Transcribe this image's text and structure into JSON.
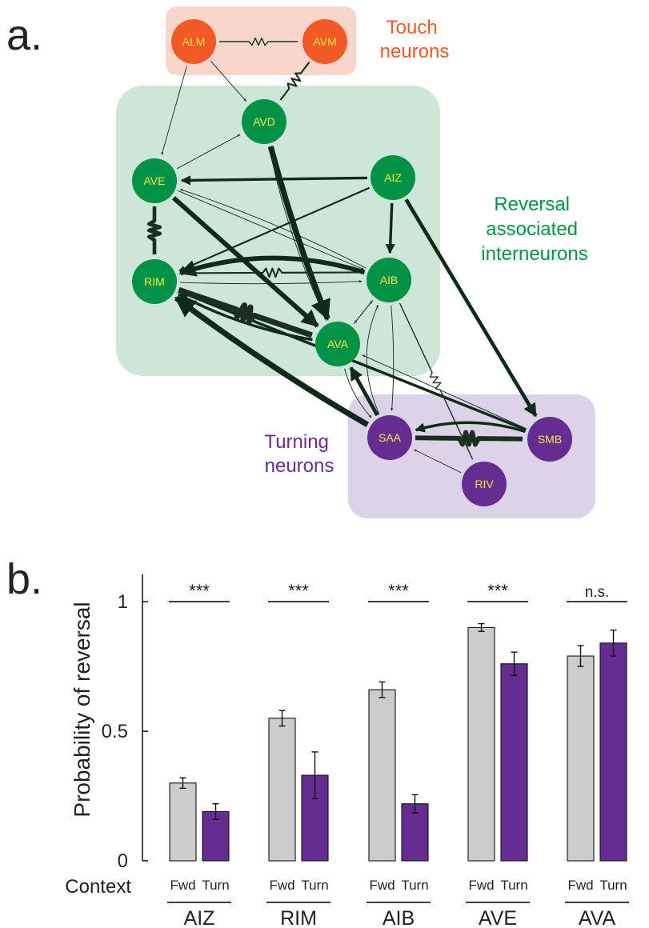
{
  "panel_a": {
    "label": "a.",
    "groups": {
      "touch": {
        "label_lines": [
          "Touch",
          "neurons"
        ],
        "color": "#f15a24",
        "box_color": "#f8d6cc"
      },
      "reversal": {
        "label_lines": [
          "Reversal",
          "associated",
          "interneurons"
        ],
        "color": "#009245",
        "box_color": "#cde6d8"
      },
      "turning": {
        "label_lines": [
          "Turning",
          "neurons"
        ],
        "color": "#662d91",
        "box_color": "#ddd3e8"
      }
    },
    "neuron_text_color": "#f5e642",
    "neurons": [
      {
        "id": "ALM",
        "label": "ALM",
        "group": "touch"
      },
      {
        "id": "AVM",
        "label": "AVM",
        "group": "touch"
      },
      {
        "id": "AVD",
        "label": "AVD",
        "group": "reversal"
      },
      {
        "id": "AVE",
        "label": "AVE",
        "group": "reversal"
      },
      {
        "id": "AIZ",
        "label": "AIZ",
        "group": "reversal"
      },
      {
        "id": "RIM",
        "label": "RIM",
        "group": "reversal"
      },
      {
        "id": "AIB",
        "label": "AIB",
        "group": "reversal"
      },
      {
        "id": "AVA",
        "label": "AVA",
        "group": "reversal"
      },
      {
        "id": "SAA",
        "label": "SAA",
        "group": "turning"
      },
      {
        "id": "SMB",
        "label": "SMB",
        "group": "turning"
      },
      {
        "id": "RIV",
        "label": "RIV",
        "group": "turning"
      }
    ],
    "connections": [
      {
        "from": "ALM",
        "to": "AVE",
        "kind": "chemical",
        "strength": 1
      },
      {
        "from": "ALM",
        "to": "AVD",
        "kind": "chemical",
        "strength": 1
      },
      {
        "from": "AVE",
        "to": "AVD",
        "kind": "chemical",
        "strength": 1
      },
      {
        "from": "AIZ",
        "to": "AVE",
        "kind": "chemical",
        "strength": 3
      },
      {
        "from": "AIZ",
        "to": "AIB",
        "kind": "chemical",
        "strength": 3
      },
      {
        "from": "AIZ",
        "to": "RIM",
        "kind": "chemical",
        "strength": 2
      },
      {
        "from": "AIZ",
        "to": "SMB",
        "kind": "chemical",
        "strength": 4
      },
      {
        "from": "AIB",
        "to": "AVE",
        "kind": "chemical",
        "strength": 1
      },
      {
        "from": "AIB",
        "to": "RIM",
        "kind": "chemical",
        "strength": 5
      },
      {
        "from": "AIB",
        "to": "AVA",
        "kind": "chemical",
        "strength": 1
      },
      {
        "from": "AIB",
        "to": "SAA",
        "kind": "chemical",
        "strength": 1
      },
      {
        "from": "RIM",
        "to": "AIB",
        "kind": "chemical",
        "strength": 1
      },
      {
        "from": "RIM",
        "to": "AVA",
        "kind": "chemical",
        "strength": 1
      },
      {
        "from": "AVE",
        "to": "AVA",
        "kind": "chemical",
        "strength": 5
      },
      {
        "from": "AVE",
        "to": "AIB",
        "kind": "chemical",
        "strength": 1
      },
      {
        "from": "AVD",
        "to": "AVA",
        "kind": "chemical",
        "strength": 6
      },
      {
        "from": "AVA",
        "to": "AVD",
        "kind": "chemical",
        "strength": 1
      },
      {
        "from": "AVA",
        "to": "AIB",
        "kind": "chemical",
        "strength": 1
      },
      {
        "from": "AVA",
        "to": "SAA",
        "kind": "chemical",
        "strength": 1
      },
      {
        "from": "SAA",
        "to": "AVA",
        "kind": "chemical",
        "strength": 4
      },
      {
        "from": "SAA",
        "to": "RIM",
        "kind": "chemical",
        "strength": 6
      },
      {
        "from": "SAA",
        "to": "AIB",
        "kind": "chemical",
        "strength": 1
      },
      {
        "from": "SMB",
        "to": "RIM",
        "kind": "chemical",
        "strength": 3
      },
      {
        "from": "SMB",
        "to": "AVA",
        "kind": "chemical",
        "strength": 1
      },
      {
        "from": "SMB",
        "to": "SAA",
        "kind": "chemical",
        "strength": 3
      },
      {
        "from": "RIV",
        "to": "SAA",
        "kind": "chemical",
        "strength": 1
      },
      {
        "from": "AVA",
        "to": "RIM",
        "kind": "chemical",
        "strength": 3
      },
      {
        "from": "ALM",
        "to": "AVM",
        "kind": "gap",
        "strength": 1
      },
      {
        "from": "AVM",
        "to": "AVD",
        "kind": "gap",
        "strength": 2
      },
      {
        "from": "AVE",
        "to": "RIM",
        "kind": "gap",
        "strength": 4
      },
      {
        "from": "RIM",
        "to": "AVA",
        "kind": "gap",
        "strength": 6
      },
      {
        "from": "AIB",
        "to": "RIM",
        "kind": "gap",
        "strength": 2
      },
      {
        "from": "SAA",
        "to": "SMB",
        "kind": "gap",
        "strength": 5
      },
      {
        "from": "AIB",
        "to": "RIV",
        "kind": "gap",
        "strength": 1
      }
    ]
  },
  "panel_b": {
    "label": "b.",
    "context_label": "Context",
    "chart_data": {
      "type": "bar",
      "ylabel": "Probability of reversal",
      "ylim": [
        0,
        1.1
      ],
      "yticks": [
        0,
        0.5,
        1
      ],
      "ytick_labels": [
        "0",
        "0.5",
        "1"
      ],
      "categories": [
        "AIZ",
        "RIM",
        "AIB",
        "AVE",
        "AVA"
      ],
      "bar_labels": [
        "Fwd",
        "Turn"
      ],
      "series": [
        {
          "name": "Fwd",
          "color": "#cccccc",
          "values": [
            0.3,
            0.55,
            0.66,
            0.9,
            0.79
          ],
          "errors": [
            0.02,
            0.03,
            0.03,
            0.015,
            0.04
          ]
        },
        {
          "name": "Turn",
          "color": "#662d91",
          "values": [
            0.19,
            0.33,
            0.22,
            0.76,
            0.84
          ],
          "errors": [
            0.03,
            0.09,
            0.035,
            0.045,
            0.05
          ]
        }
      ],
      "significance": [
        "***",
        "***",
        "***",
        "***",
        "n.s."
      ]
    }
  }
}
